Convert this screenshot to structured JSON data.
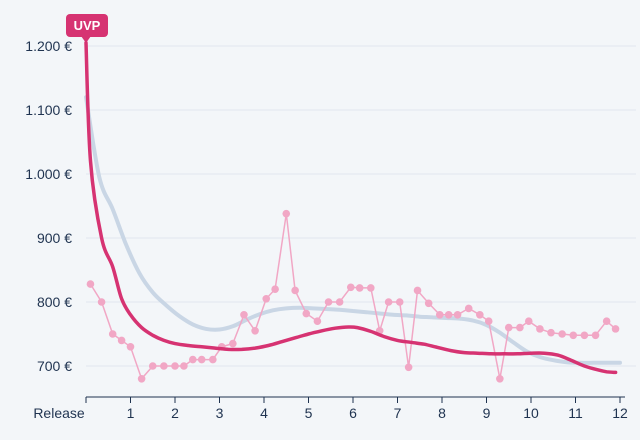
{
  "chart_data": {
    "type": "line",
    "x_tick_labels": [
      "Release",
      "1",
      "2",
      "3",
      "4",
      "5",
      "6",
      "7",
      "8",
      "9",
      "10",
      "11",
      "12"
    ],
    "y_tick_labels": [
      "1.200 €",
      "1.100 €",
      "1.000 €",
      "900 €",
      "800 €",
      "700 €"
    ],
    "y_ticks": [
      1200,
      1100,
      1000,
      900,
      800,
      700
    ],
    "xlim": [
      0,
      12
    ],
    "ylim": [
      670,
      1205
    ],
    "grid": true,
    "annotation": {
      "label": "UVP",
      "x": 0,
      "y": 1200
    },
    "series": [
      {
        "role": "average",
        "color": "#c9d6e5",
        "points": [
          [
            0,
            1120
          ],
          [
            0.3,
            995
          ],
          [
            0.6,
            945
          ],
          [
            0.9,
            890
          ],
          [
            1.2,
            845
          ],
          [
            1.5,
            815
          ],
          [
            1.8,
            795
          ],
          [
            2.1,
            778
          ],
          [
            2.4,
            765
          ],
          [
            2.7,
            758
          ],
          [
            3,
            757
          ],
          [
            3.3,
            762
          ],
          [
            3.6,
            772
          ],
          [
            3.9,
            781
          ],
          [
            4.2,
            787
          ],
          [
            4.5,
            790
          ],
          [
            4.8,
            791
          ],
          [
            5.1,
            790
          ],
          [
            5.4,
            789
          ],
          [
            5.7,
            788
          ],
          [
            6,
            786
          ],
          [
            6.3,
            784
          ],
          [
            6.6,
            782
          ],
          [
            6.9,
            780
          ],
          [
            7.2,
            779
          ],
          [
            7.5,
            777
          ],
          [
            7.8,
            776
          ],
          [
            8.1,
            775
          ],
          [
            8.4,
            774
          ],
          [
            8.7,
            771
          ],
          [
            9,
            764
          ],
          [
            9.3,
            752
          ],
          [
            9.6,
            737
          ],
          [
            9.9,
            723
          ],
          [
            10.2,
            714
          ],
          [
            10.5,
            709
          ],
          [
            10.8,
            706
          ],
          [
            11.1,
            705
          ],
          [
            11.4,
            705
          ],
          [
            11.7,
            705
          ],
          [
            12,
            705
          ]
        ]
      },
      {
        "role": "price",
        "color": "#d63372",
        "points": [
          [
            0,
            1205
          ],
          [
            0.1,
            1020
          ],
          [
            0.35,
            900
          ],
          [
            0.6,
            855
          ],
          [
            0.8,
            805
          ],
          [
            1,
            780
          ],
          [
            1.25,
            760
          ],
          [
            1.5,
            748
          ],
          [
            1.75,
            740
          ],
          [
            2,
            735
          ],
          [
            2.3,
            732
          ],
          [
            2.6,
            730
          ],
          [
            2.9,
            728
          ],
          [
            3.2,
            726
          ],
          [
            3.5,
            726
          ],
          [
            3.8,
            728
          ],
          [
            4.1,
            732
          ],
          [
            4.4,
            738
          ],
          [
            4.7,
            744
          ],
          [
            5,
            750
          ],
          [
            5.3,
            755
          ],
          [
            5.6,
            759
          ],
          [
            5.9,
            761
          ],
          [
            6.1,
            760
          ],
          [
            6.4,
            754
          ],
          [
            6.7,
            746
          ],
          [
            7,
            740
          ],
          [
            7.3,
            737
          ],
          [
            7.6,
            734
          ],
          [
            7.9,
            729
          ],
          [
            8.2,
            724
          ],
          [
            8.5,
            721
          ],
          [
            8.8,
            720
          ],
          [
            9.1,
            719
          ],
          [
            9.4,
            719
          ],
          [
            9.7,
            719
          ],
          [
            10,
            720
          ],
          [
            10.3,
            720
          ],
          [
            10.6,
            717
          ],
          [
            10.9,
            709
          ],
          [
            11.2,
            700
          ],
          [
            11.5,
            694
          ],
          [
            11.7,
            691
          ],
          [
            11.9,
            690
          ]
        ]
      },
      {
        "role": "offers",
        "color": "#f1a7c5",
        "points": [
          [
            0.1,
            828
          ],
          [
            0.35,
            800
          ],
          [
            0.6,
            750
          ],
          [
            0.8,
            740
          ],
          [
            1,
            730
          ],
          [
            1.25,
            680
          ],
          [
            1.5,
            700
          ],
          [
            1.75,
            700
          ],
          [
            2,
            700
          ],
          [
            2.2,
            700
          ],
          [
            2.4,
            710
          ],
          [
            2.6,
            710
          ],
          [
            2.85,
            710
          ],
          [
            3.05,
            730
          ],
          [
            3.3,
            735
          ],
          [
            3.55,
            780
          ],
          [
            3.8,
            755
          ],
          [
            4.05,
            805
          ],
          [
            4.25,
            820
          ],
          [
            4.5,
            938
          ],
          [
            4.7,
            818
          ],
          [
            4.95,
            782
          ],
          [
            5.2,
            770
          ],
          [
            5.45,
            800
          ],
          [
            5.7,
            800
          ],
          [
            5.95,
            823
          ],
          [
            6.15,
            822
          ],
          [
            6.4,
            822
          ],
          [
            6.6,
            755
          ],
          [
            6.8,
            800
          ],
          [
            7.05,
            800
          ],
          [
            7.25,
            698
          ],
          [
            7.45,
            818
          ],
          [
            7.7,
            798
          ],
          [
            7.95,
            780
          ],
          [
            8.15,
            780
          ],
          [
            8.35,
            780
          ],
          [
            8.6,
            790
          ],
          [
            8.85,
            780
          ],
          [
            9.05,
            770
          ],
          [
            9.3,
            680
          ],
          [
            9.5,
            760
          ],
          [
            9.75,
            760
          ],
          [
            9.95,
            770
          ],
          [
            10.2,
            758
          ],
          [
            10.45,
            752
          ],
          [
            10.7,
            750
          ],
          [
            10.95,
            748
          ],
          [
            11.2,
            748
          ],
          [
            11.45,
            748
          ],
          [
            11.7,
            770
          ],
          [
            11.9,
            758
          ]
        ]
      }
    ]
  }
}
